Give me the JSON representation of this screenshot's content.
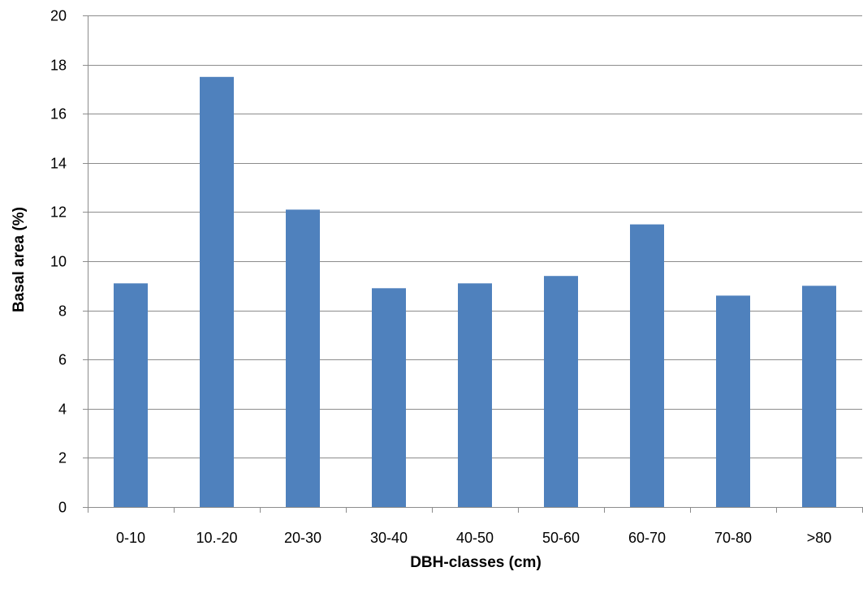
{
  "chart_data": {
    "type": "bar",
    "categories": [
      "0-10",
      "10.-20",
      "20-30",
      "30-40",
      "40-50",
      "50-60",
      "60-70",
      "70-80",
      ">80"
    ],
    "series": [
      {
        "values": [
          9.1,
          17.5,
          12.1,
          8.9,
          9.1,
          9.4,
          11.5,
          8.6,
          9.0
        ]
      }
    ],
    "title": "",
    "xlabel": "DBH-classes (cm)",
    "ylabel": "Basal area (%)",
    "ylim": [
      0,
      20
    ],
    "yticks": [
      0,
      2,
      4,
      6,
      8,
      10,
      12,
      14,
      16,
      18,
      20
    ],
    "grid": "horizontal",
    "legend": "none",
    "colors": {
      "bar": "#4f81bd",
      "grid": "#8c8c8c"
    }
  }
}
